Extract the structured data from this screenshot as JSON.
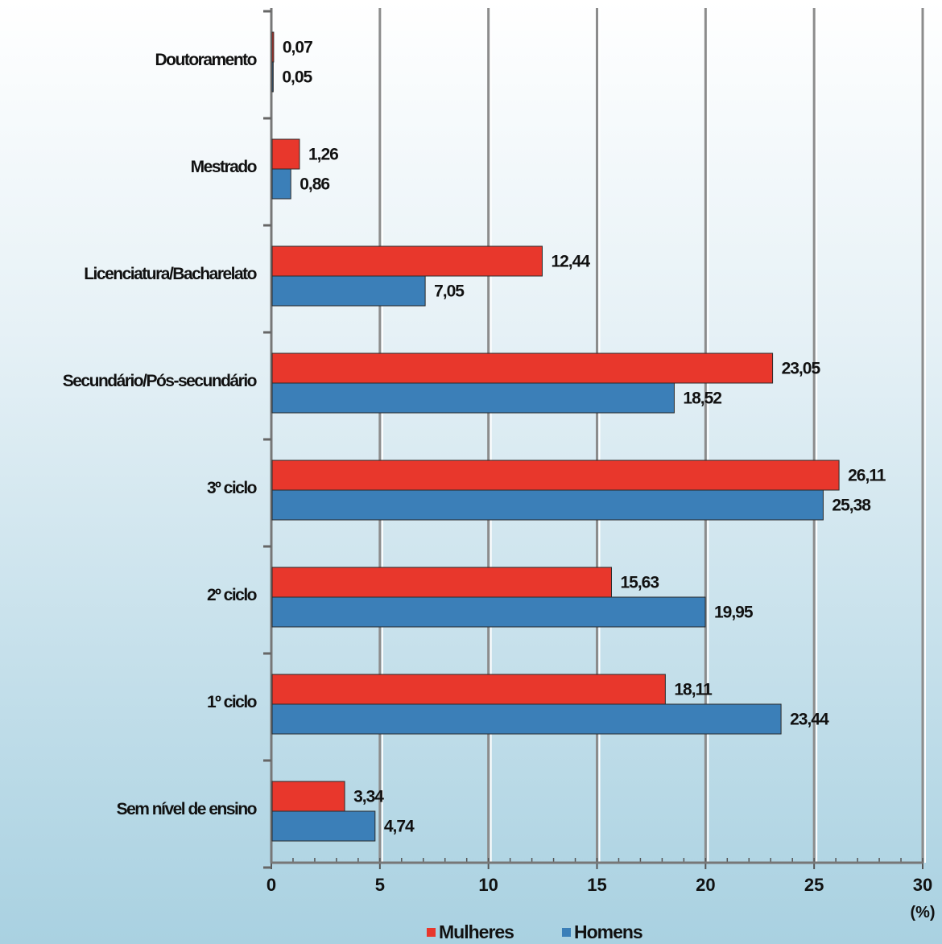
{
  "chart_data": {
    "type": "bar",
    "orientation": "horizontal",
    "title": "",
    "xlabel": "(%)",
    "ylabel": "",
    "xlim": [
      0,
      30
    ],
    "xticks": [
      "0",
      "5",
      "10",
      "15",
      "20",
      "25",
      "30"
    ],
    "grid": "vertical",
    "legend_position": "bottom",
    "categories": [
      "Doutoramento",
      "Mestrado",
      "Licenciatura/Bacharelato",
      "Secundário/Pós-secundário",
      "3º ciclo",
      "2º ciclo",
      "1º ciclo",
      "Sem nível de ensino"
    ],
    "series": [
      {
        "name": "Mulheres",
        "color": "#e8372c",
        "values": [
          0.07,
          1.26,
          12.44,
          23.05,
          26.11,
          15.63,
          18.11,
          3.34
        ],
        "labels": [
          "0,07",
          "1,26",
          "12,44",
          "23,05",
          "26,11",
          "15,63",
          "18,11",
          "3,34"
        ]
      },
      {
        "name": "Homens",
        "color": "#3b7fb8",
        "values": [
          0.05,
          0.86,
          7.05,
          18.52,
          25.38,
          19.95,
          23.44,
          4.74
        ],
        "labels": [
          "0,05",
          "0,86",
          "7,05",
          "18,52",
          "25,38",
          "19,95",
          "23,44",
          "4,74"
        ]
      }
    ]
  }
}
